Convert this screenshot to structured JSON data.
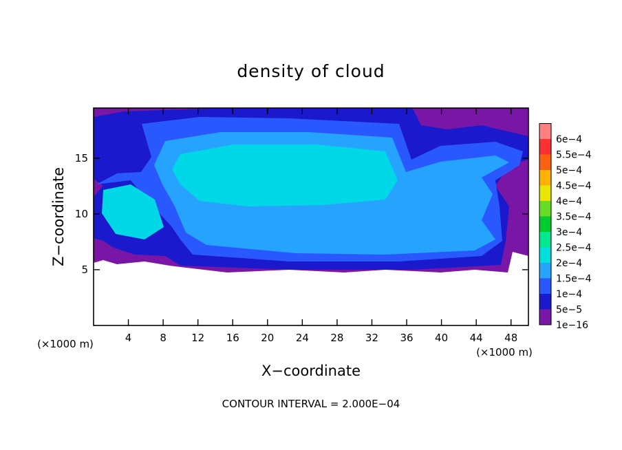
{
  "chart_data": {
    "type": "heatmap",
    "title": "density of cloud",
    "xlabel": "X−coordinate",
    "ylabel": "Z−coordinate",
    "x_unit_left": "(×1000 m)",
    "x_unit_right": "(×1000 m)",
    "footer": "CONTOUR INTERVAL = 2.000E−04",
    "xlim": [
      0,
      50
    ],
    "ylim": [
      0,
      19.5
    ],
    "x_ticks": [
      4,
      8,
      12,
      16,
      20,
      24,
      28,
      32,
      36,
      40,
      44,
      48
    ],
    "x_tick_labels": [
      "4",
      "8",
      "12",
      "16",
      "20",
      "24",
      "28",
      "32",
      "36",
      "40",
      "44",
      "48"
    ],
    "y_ticks": [
      5,
      10,
      15
    ],
    "y_tick_labels": [
      "5",
      "10",
      "15"
    ],
    "colorbar": {
      "levels": [
        {
          "label": "1e−16",
          "color": "#7a16a6"
        },
        {
          "label": "5e−5",
          "color": "#1a1acc"
        },
        {
          "label": "1e−4",
          "color": "#2a58ff"
        },
        {
          "label": "1.5e−4",
          "color": "#26a2ff"
        },
        {
          "label": "2e−4",
          "color": "#00dede"
        },
        {
          "label": "2.5e−4",
          "color": "#00e890"
        },
        {
          "label": "3e−4",
          "color": "#00cc30"
        },
        {
          "label": "3.5e−4",
          "color": "#66dd22"
        },
        {
          "label": "4e−4",
          "color": "#e6e600"
        },
        {
          "label": "4.5e−4",
          "color": "#ffb000"
        },
        {
          "label": "5e−4",
          "color": "#ff6010"
        },
        {
          "label": "5.5e−4",
          "color": "#ff3030"
        },
        {
          "label": "6e−4",
          "color": "#ff8080"
        }
      ]
    },
    "field_colors": {
      "edge": "#7a16a6",
      "low": "#1a1acc",
      "mid": "#2a58ff",
      "high": "#26a2ff",
      "core": "#00d8e8"
    }
  }
}
